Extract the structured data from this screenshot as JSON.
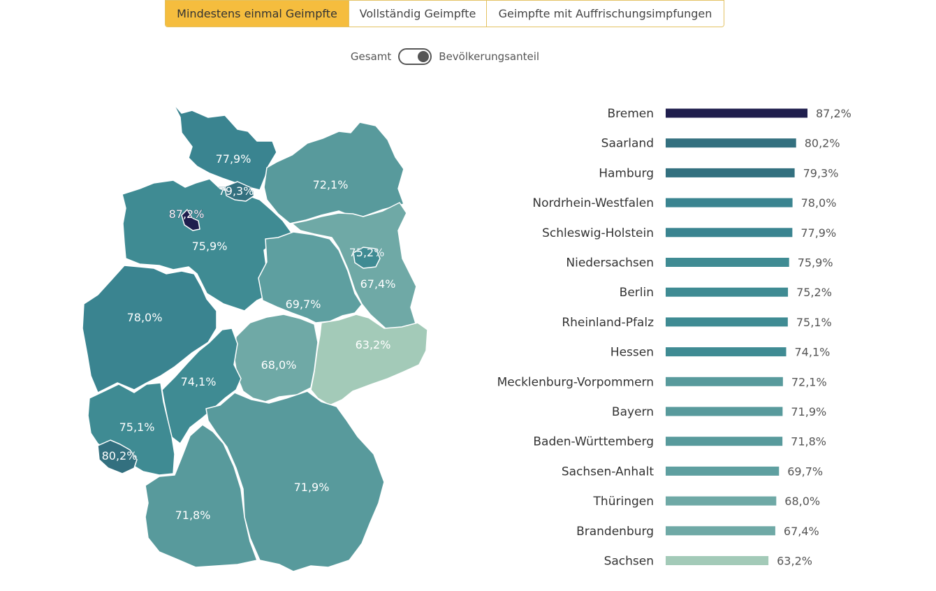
{
  "tabs": {
    "first": "Mindestens einmal Geimpfte",
    "second": "Vollständig Geimpfte",
    "third": "Geimpfte mit Auffrischungsimpfungen"
  },
  "toggle": {
    "left_label": "Gesamt",
    "right_label": "Bevölkerungsanteil"
  },
  "colors": {
    "tab_active": "#f5bd3e",
    "scale": [
      "#1f1e4d",
      "#2e5a78",
      "#2f6a7e",
      "#33707f",
      "#3a8490",
      "#3f8b93",
      "#589a9c",
      "#5e9fa0",
      "#6fa9a6",
      "#7fb3ad",
      "#a3cab8"
    ]
  },
  "chart_data": {
    "type": "bar",
    "unit": "%",
    "categories": [
      "Bremen",
      "Saarland",
      "Hamburg",
      "Nordrhein-Westfalen",
      "Schleswig-Holstein",
      "Niedersachsen",
      "Berlin",
      "Rheinland-Pfalz",
      "Hessen",
      "Mecklenburg-Vorpommern",
      "Bayern",
      "Baden-Württemberg",
      "Sachsen-Anhalt",
      "Thüringen",
      "Brandenburg",
      "Sachsen"
    ],
    "values": [
      87.2,
      80.2,
      79.3,
      78.0,
      77.9,
      75.9,
      75.2,
      75.1,
      74.1,
      72.1,
      71.9,
      71.8,
      69.7,
      68.0,
      67.4,
      63.2
    ],
    "value_labels": [
      "87,2%",
      "80,2%",
      "79,3%",
      "78,0%",
      "77,9%",
      "75,9%",
      "75,2%",
      "75,1%",
      "74,1%",
      "72,1%",
      "71,9%",
      "71,8%",
      "69,7%",
      "68,0%",
      "67,4%",
      "63,2%"
    ]
  }
}
